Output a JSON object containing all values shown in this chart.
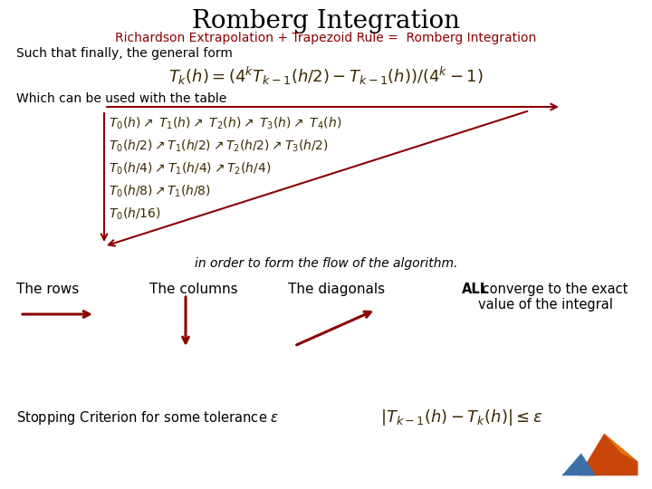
{
  "title": "Romberg Integration",
  "subtitle": "Richardson Extrapolation + Trapezoid Rule =  Romberg Integration",
  "line1": "Such that finally, the general form",
  "formula1": "$T_k(h) = (4^kT_{k-1}(h/2) - T_{k-1}(h))/(4^k - 1)$",
  "line2": "Which can be used with the table",
  "line3": "in order to form the flow of the algorithm.",
  "rows_label": "The rows",
  "cols_label": "The columns",
  "diags_label": "The diagonals",
  "all_label_bold": "ALL",
  "all_label_rest": " converge to the exact\nvalue of the integral",
  "stopping_label": "Stopping Criterion for some tolerance $\\epsilon$",
  "stopping_formula": "$|T_{k-1}(h) - T_k(h)| \\leq \\epsilon$",
  "bg_color": "#ffffff",
  "title_color": "#000000",
  "subtitle_color": "#8B0000",
  "text_color": "#000000",
  "arrow_color": "#8B0000",
  "table_color": "#3a2800"
}
